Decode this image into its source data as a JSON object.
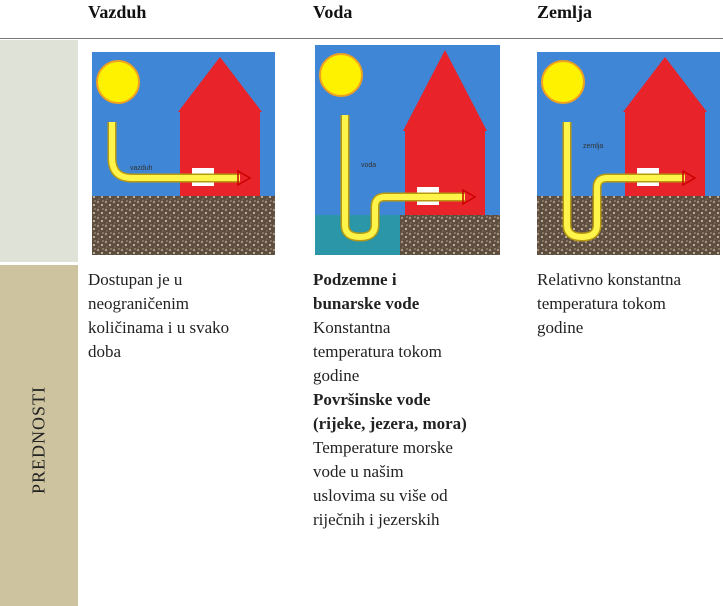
{
  "header": {
    "columns": [
      "Vazduh",
      "Voda",
      "Zemlja"
    ]
  },
  "images": [
    {
      "label": "vazduh"
    },
    {
      "label": "voda"
    },
    {
      "label": "zemlja"
    }
  ],
  "row": {
    "title": "PREDNOSTI",
    "cells": [
      [
        {
          "text": [
            "Dostupan je u",
            "neograničenim",
            "količinama i u svako",
            "doba"
          ]
        }
      ],
      [
        {
          "heading": [
            "Podzemne i",
            "bunarske vode"
          ]
        },
        {
          "text": [
            "Konstantna",
            "temperatura tokom",
            "godine"
          ]
        },
        {
          "heading": [
            "Površinske vode",
            "(rijeke, jezera, mora)"
          ]
        },
        {
          "text": [
            "Temperature morske",
            "vode u našim",
            "uslovima su više od",
            "riječnih i jezerskih"
          ]
        }
      ],
      [
        {
          "text": [
            "Relativno konstantna",
            "temperatura tokom",
            "godine"
          ]
        }
      ]
    ]
  }
}
